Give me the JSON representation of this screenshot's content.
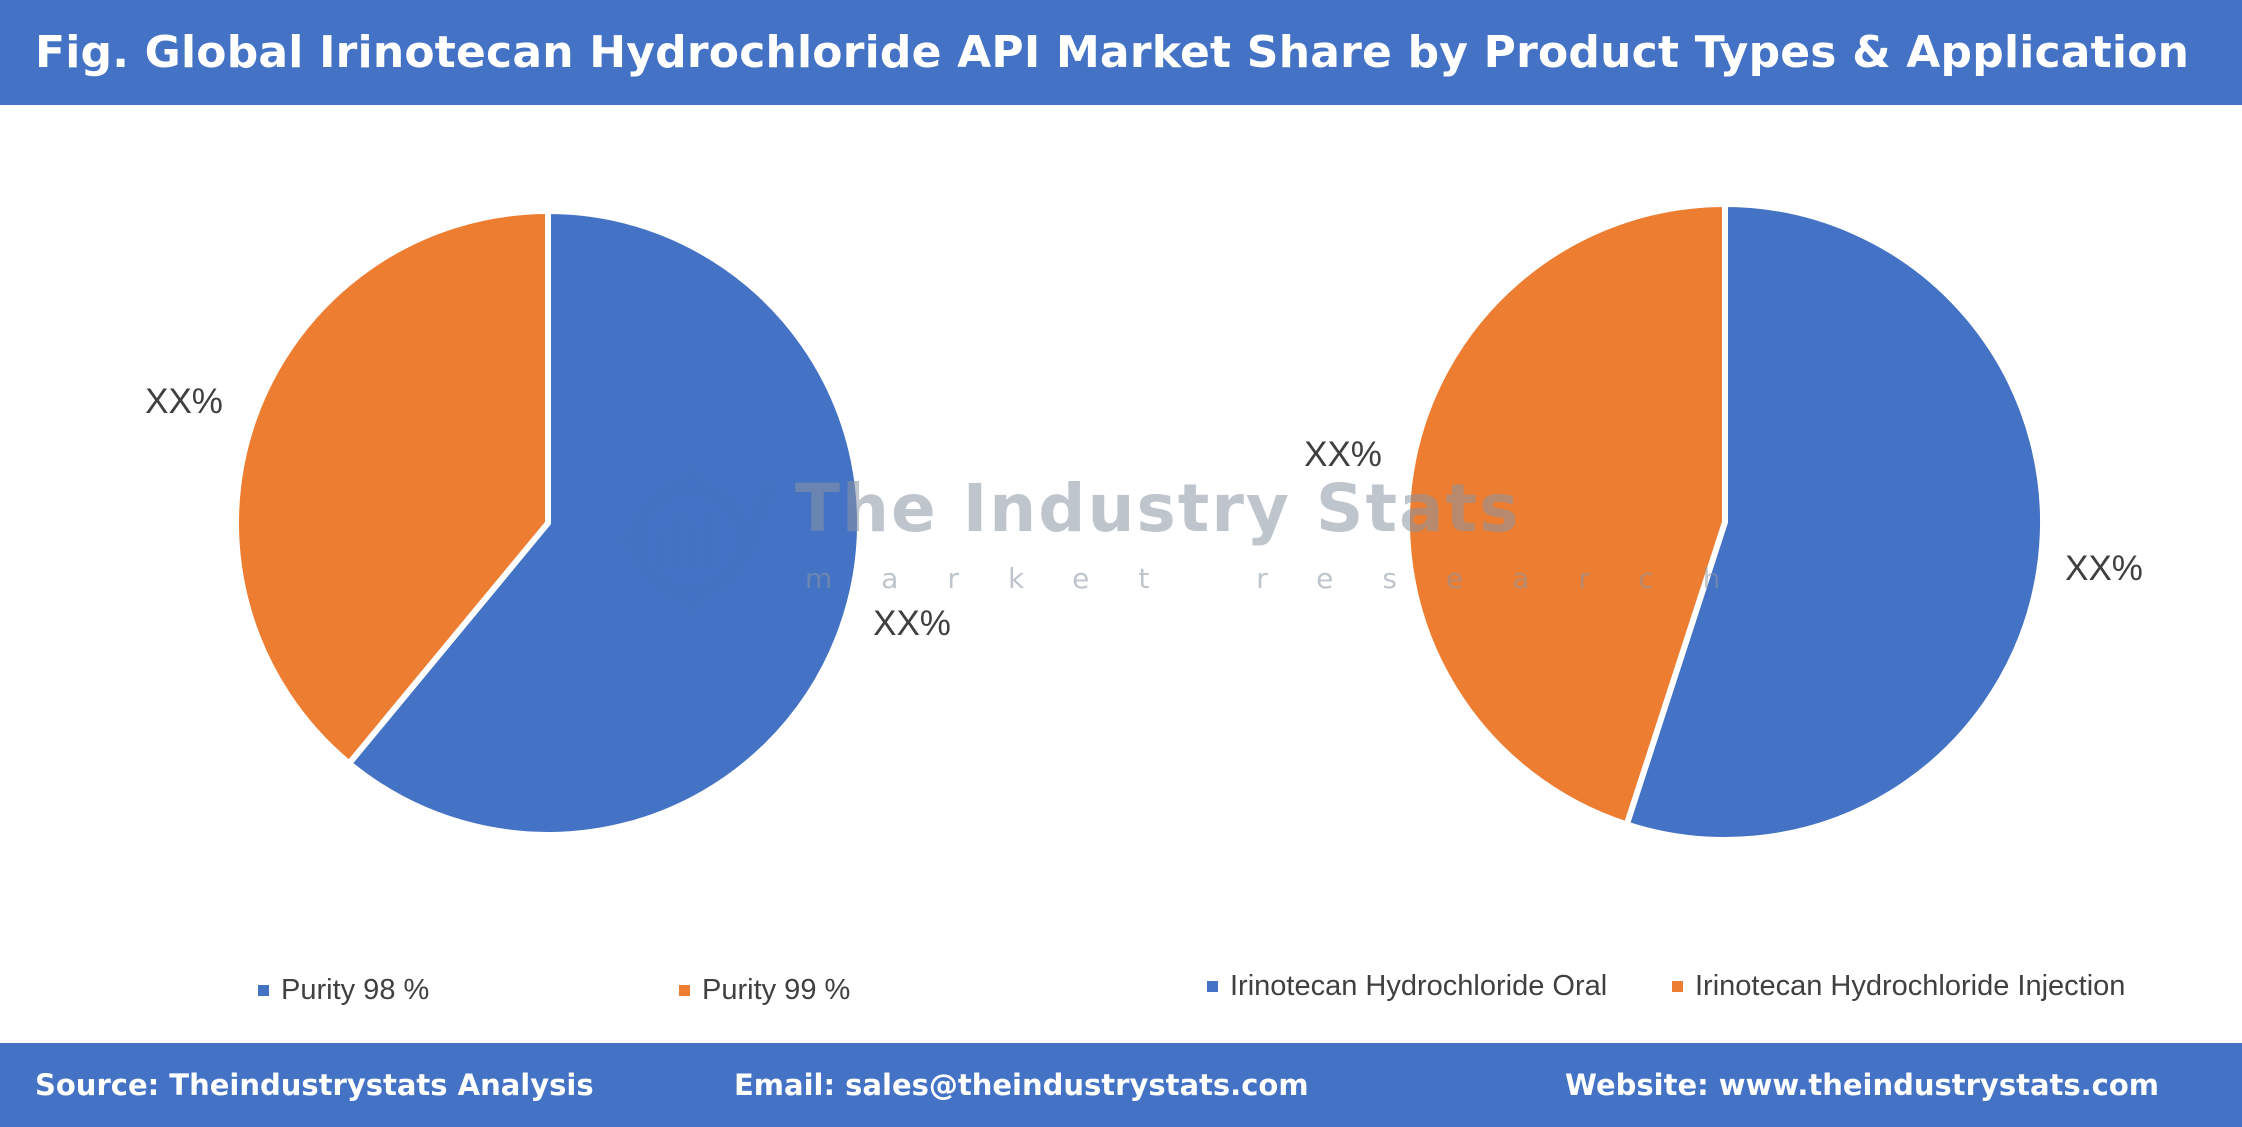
{
  "title": "Fig. Global Irinotecan Hydrochloride API Market Share by Product Types & Application",
  "colors": {
    "accent": "#4472c4",
    "blue": "#4472c4",
    "orange": "#ed7d31"
  },
  "watermark": {
    "title": "The Industry Stats",
    "subtitle": "market research",
    "icon": "gear-chart-logo-icon"
  },
  "chart_data": [
    {
      "type": "pie",
      "title": "",
      "slices": [
        {
          "name": "Purity 98 %",
          "value": 61,
          "label": "XX%",
          "color": "#4472c4"
        },
        {
          "name": "Purity 99 %",
          "value": 39,
          "label": "XX%",
          "color": "#ed7d31"
        }
      ],
      "legend": "bottom"
    },
    {
      "type": "pie",
      "title": "",
      "slices": [
        {
          "name": "Irinotecan Hydrochloride Oral",
          "value": 55,
          "label": "XX%",
          "color": "#4472c4"
        },
        {
          "name": "Irinotecan Hydrochloride Injection",
          "value": 45,
          "label": "XX%",
          "color": "#ed7d31"
        }
      ],
      "legend": "bottom"
    }
  ],
  "footer": {
    "source": "Source: Theindustrystats Analysis",
    "email": "Email: sales@theindustrystats.com",
    "website": "Website: www.theindustrystats.com"
  }
}
